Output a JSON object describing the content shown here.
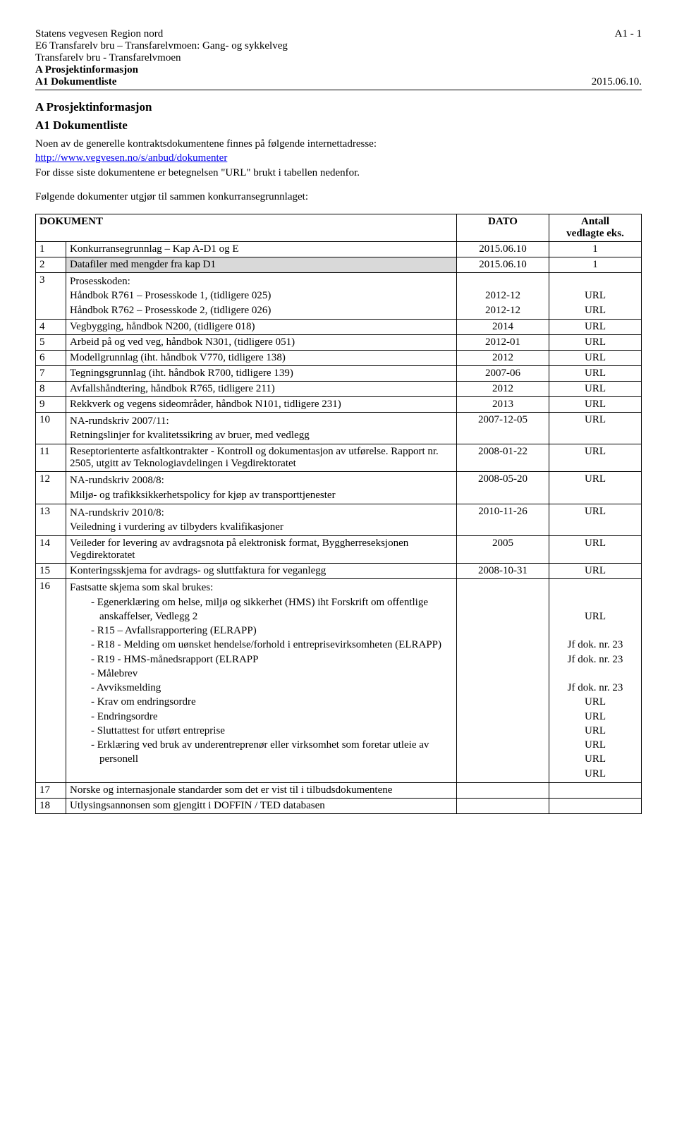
{
  "header": {
    "org": "Statens vegvesen Region nord",
    "page_marker": "A1 - 1",
    "project_line1": "E6 Transfarelv bru – Transfarelvmoen: Gang- og sykkelveg",
    "project_line2": "Transfarelv bru - Transfarelvmoen",
    "info_line": "A Prosjektinformasjon",
    "doclist_line": "A1 Dokumentliste",
    "date": "2015.06.10."
  },
  "title1": "A Prosjektinformasjon",
  "title2": "A1   Dokumentliste",
  "intro1a": "Noen av de generelle kontraktsdokumentene finnes på følgende internettadresse:",
  "intro1_link": "http://www.vegvesen.no/s/anbud/dokumenter",
  "intro1b": "For disse siste dokumentene er betegnelsen \"URL\" brukt i tabellen nedenfor.",
  "intro2": "Følgende dokumenter utgjør til sammen konkurransegrunnlaget:",
  "table": {
    "head_doc": "DOKUMENT",
    "head_date": "DATO",
    "head_att_l1": "Antall",
    "head_att_l2": "vedlagte eks.",
    "rows_simple": [
      {
        "n": "1",
        "t": "Konkurransegrunnlag – Kap A-D1 og E",
        "d": "2015.06.10",
        "a": "1",
        "hl": false
      },
      {
        "n": "2",
        "t": "Datafiler med mengder fra kap D1",
        "d": "2015.06.10",
        "a": "1",
        "hl": true
      }
    ],
    "row3": {
      "n": "3",
      "t_intro": "Prosesskoden:",
      "t_l1": "Håndbok R761 – Prosesskode 1, (tidligere 025)",
      "t_l2": "Håndbok R762 – Prosesskode 2, (tidligere 026)",
      "d_l1": "2012-12",
      "d_l2": "2012-12",
      "a_l1": "URL",
      "a_l2": "URL"
    },
    "rows_mid": [
      {
        "n": "4",
        "t": "Vegbygging, håndbok N200, (tidligere 018)",
        "d": "2014",
        "a": "URL"
      },
      {
        "n": "5",
        "t": "Arbeid på og ved veg, håndbok N301, (tidligere 051)",
        "d": "2012-01",
        "a": "URL"
      },
      {
        "n": "6",
        "t": "Modellgrunnlag (iht. håndbok V770, tidligere 138)",
        "d": "2012",
        "a": "URL"
      },
      {
        "n": "7",
        "t": "Tegningsgrunnlag (iht. håndbok R700, tidligere 139)",
        "d": "2007-06",
        "a": "URL"
      },
      {
        "n": "8",
        "t": "Avfallshåndtering, håndbok R765, tidligere 211)",
        "d": "2012",
        "a": "URL"
      },
      {
        "n": "9",
        "t": "Rekkverk og vegens sideområder, håndbok N101, tidligere 231)",
        "d": "2013",
        "a": "URL"
      }
    ],
    "row10": {
      "n": "10",
      "t_l1": "NA-rundskriv 2007/11:",
      "t_l2": "Retningslinjer for kvalitetssikring av bruer, med vedlegg",
      "d": "2007-12-05",
      "a": "URL"
    },
    "row11": {
      "n": "11",
      "t": "Reseptorienterte asfaltkontrakter - Kontroll og dokumentasjon av utførelse. Rapport nr. 2505, utgitt av Teknologiavdelingen i Vegdirektoratet",
      "d": "2008-01-22",
      "a": "URL"
    },
    "row12": {
      "n": "12",
      "t_l1": "NA-rundskriv 2008/8:",
      "t_l2": "Miljø- og trafikksikkerhetspolicy for kjøp av transporttjenester",
      "d": "2008-05-20",
      "a": "URL"
    },
    "row13": {
      "n": "13",
      "t_l1": "NA-rundskriv 2010/8:",
      "t_l2": "Veiledning i vurdering av tilbyders kvalifikasjoner",
      "d": "2010-11-26",
      "a": "URL"
    },
    "row14": {
      "n": "14",
      "t": "Veileder for levering av avdragsnota på elektronisk format, Byggherreseksjonen Vegdirektoratet",
      "d": "2005",
      "a": "URL"
    },
    "row15": {
      "n": "15",
      "t": "Konteringsskjema for avdrags- og sluttfaktura for veganlegg",
      "d": "2008-10-31",
      "a": "URL"
    },
    "row16": {
      "n": "16",
      "t_intro": "Fastsatte skjema som skal brukes:",
      "items": [
        "Egenerklæring om helse, miljø og sikkerhet (HMS) iht Forskrift om offentlige anskaffelser, Vedlegg 2",
        "R15 – Avfallsrapportering (ELRAPP)",
        "R18 - Melding om uønsket hendelse/forhold i entreprisevirksomheten (ELRAPP)",
        "R19 - HMS-månedsrapport (ELRAPP",
        "Målebrev",
        "Avviksmelding",
        "Krav om endringsordre",
        "Endringsordre",
        "Sluttattest for utført entreprise",
        "Erklæring ved bruk av underentreprenør eller virksomhet som foretar utleie av personell"
      ],
      "attach_lines": [
        "",
        "",
        "URL",
        "",
        "Jf dok. nr. 23",
        "Jf dok. nr. 23",
        "",
        "Jf dok. nr. 23",
        "URL",
        "URL",
        "URL",
        "URL",
        "URL",
        "URL"
      ]
    },
    "row17": {
      "n": "17",
      "t": "Norske og internasjonale standarder som det er vist til i tilbudsdokumentene",
      "d": "",
      "a": ""
    },
    "row18": {
      "n": "18",
      "t": "Utlysingsannonsen som gjengitt i DOFFIN / TED databasen",
      "d": "",
      "a": ""
    }
  }
}
